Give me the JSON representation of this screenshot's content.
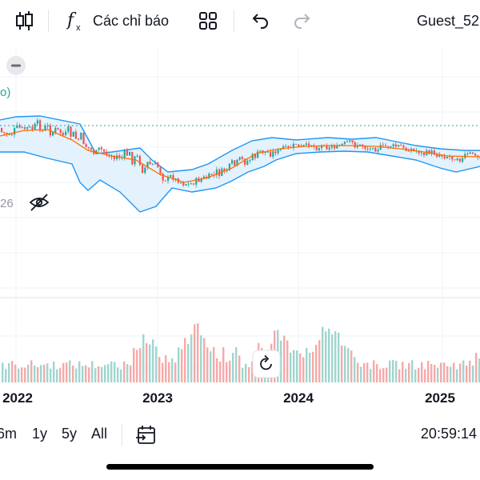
{
  "toolbar": {
    "indicators_label": "Các chỉ báo",
    "user_label": "Guest_52"
  },
  "chart": {
    "legend_fragment": "o)",
    "partial_value": "26",
    "colors": {
      "up": "#26a69a",
      "down": "#ef5350",
      "bollinger_band": "#2196f3",
      "bollinger_fill": "#e3f2fd",
      "basis": "#ff6d00",
      "price_line": "#26a69a"
    }
  },
  "chart_data": {
    "type": "candlestick",
    "x_ticks": [
      "2022",
      "2023",
      "2024",
      "2025"
    ],
    "series": [
      "Bollinger Bands",
      "Volume"
    ]
  },
  "bottom_bar": {
    "ranges": [
      "6m",
      "1y",
      "5y",
      "All"
    ],
    "time": "20:59:14"
  }
}
